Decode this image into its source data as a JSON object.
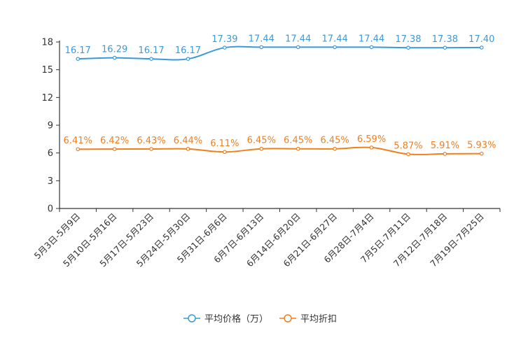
{
  "chart_data": {
    "type": "line",
    "title": "",
    "xlabel": "",
    "ylabel": "",
    "ylim": [
      0,
      18
    ],
    "yticks": [
      0,
      3,
      6,
      9,
      12,
      15,
      18
    ],
    "grid": false,
    "legend_position": "bottom",
    "categories": [
      "5月3日-5月9日",
      "5月10日-5月16日",
      "5月17日-5月23日",
      "5月24日-5月30日",
      "5月31日-6月6日",
      "6月7日-6月13日",
      "6月14日-6月20日",
      "6月21日-6月27日",
      "6月28日-7月4日",
      "7月5日-7月11日",
      "7月12日-7月18日",
      "7月19日-7月25日"
    ],
    "series": [
      {
        "name": "平均价格（万）",
        "color": "#3a9ad9",
        "values": [
          16.17,
          16.29,
          16.17,
          16.17,
          17.39,
          17.44,
          17.44,
          17.44,
          17.44,
          17.38,
          17.38,
          17.4
        ],
        "labels": [
          "16.17",
          "16.29",
          "16.17",
          "16.17",
          "17.39",
          "17.44",
          "17.44",
          "17.44",
          "17.44",
          "17.38",
          "17.38",
          "17.40"
        ]
      },
      {
        "name": "平均折扣",
        "color": "#f07f1e",
        "values": [
          6.41,
          6.42,
          6.43,
          6.44,
          6.11,
          6.45,
          6.45,
          6.45,
          6.59,
          5.87,
          5.91,
          5.93
        ],
        "labels": [
          "6.41%",
          "6.42%",
          "6.43%",
          "6.44%",
          "6.11%",
          "6.45%",
          "6.45%",
          "6.45%",
          "6.59%",
          "5.87%",
          "5.91%",
          "5.93%"
        ]
      }
    ]
  }
}
